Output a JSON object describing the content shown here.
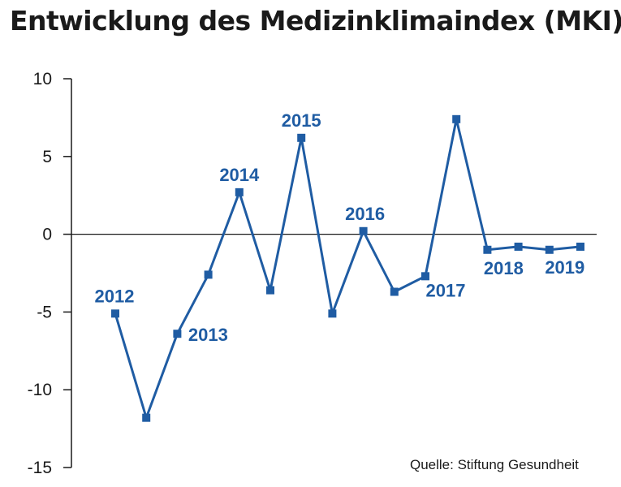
{
  "chart_data": {
    "type": "line",
    "title": "Entwicklung des Medizinklimaindex (MKI)",
    "source": "Quelle:  Stiftung Gesundheit",
    "ylim": [
      -15,
      10
    ],
    "yticks": [
      10,
      5,
      0,
      -5,
      -10,
      -15
    ],
    "ytick_labels": [
      "10",
      "5",
      "0",
      "-5",
      "-10",
      "-15"
    ],
    "line_color": "#1f5ca3",
    "grid": false,
    "series": [
      {
        "values": [
          -5.1,
          -11.8,
          -6.4,
          -2.6,
          2.7,
          -3.6,
          6.2,
          -5.1,
          0.2,
          -3.7,
          -2.7,
          7.4,
          -1.0,
          -0.8,
          -1.0,
          -0.8
        ]
      }
    ],
    "annotations": [
      {
        "text": "2012",
        "point": 0
      },
      {
        "text": "2013",
        "point": 2
      },
      {
        "text": "2014",
        "point": 4
      },
      {
        "text": "2015",
        "point": 6
      },
      {
        "text": "2016",
        "point": 8
      },
      {
        "text": "2017",
        "point": 10
      },
      {
        "text": "2018",
        "point": 12
      },
      {
        "text": "2019",
        "point": 14
      }
    ]
  }
}
